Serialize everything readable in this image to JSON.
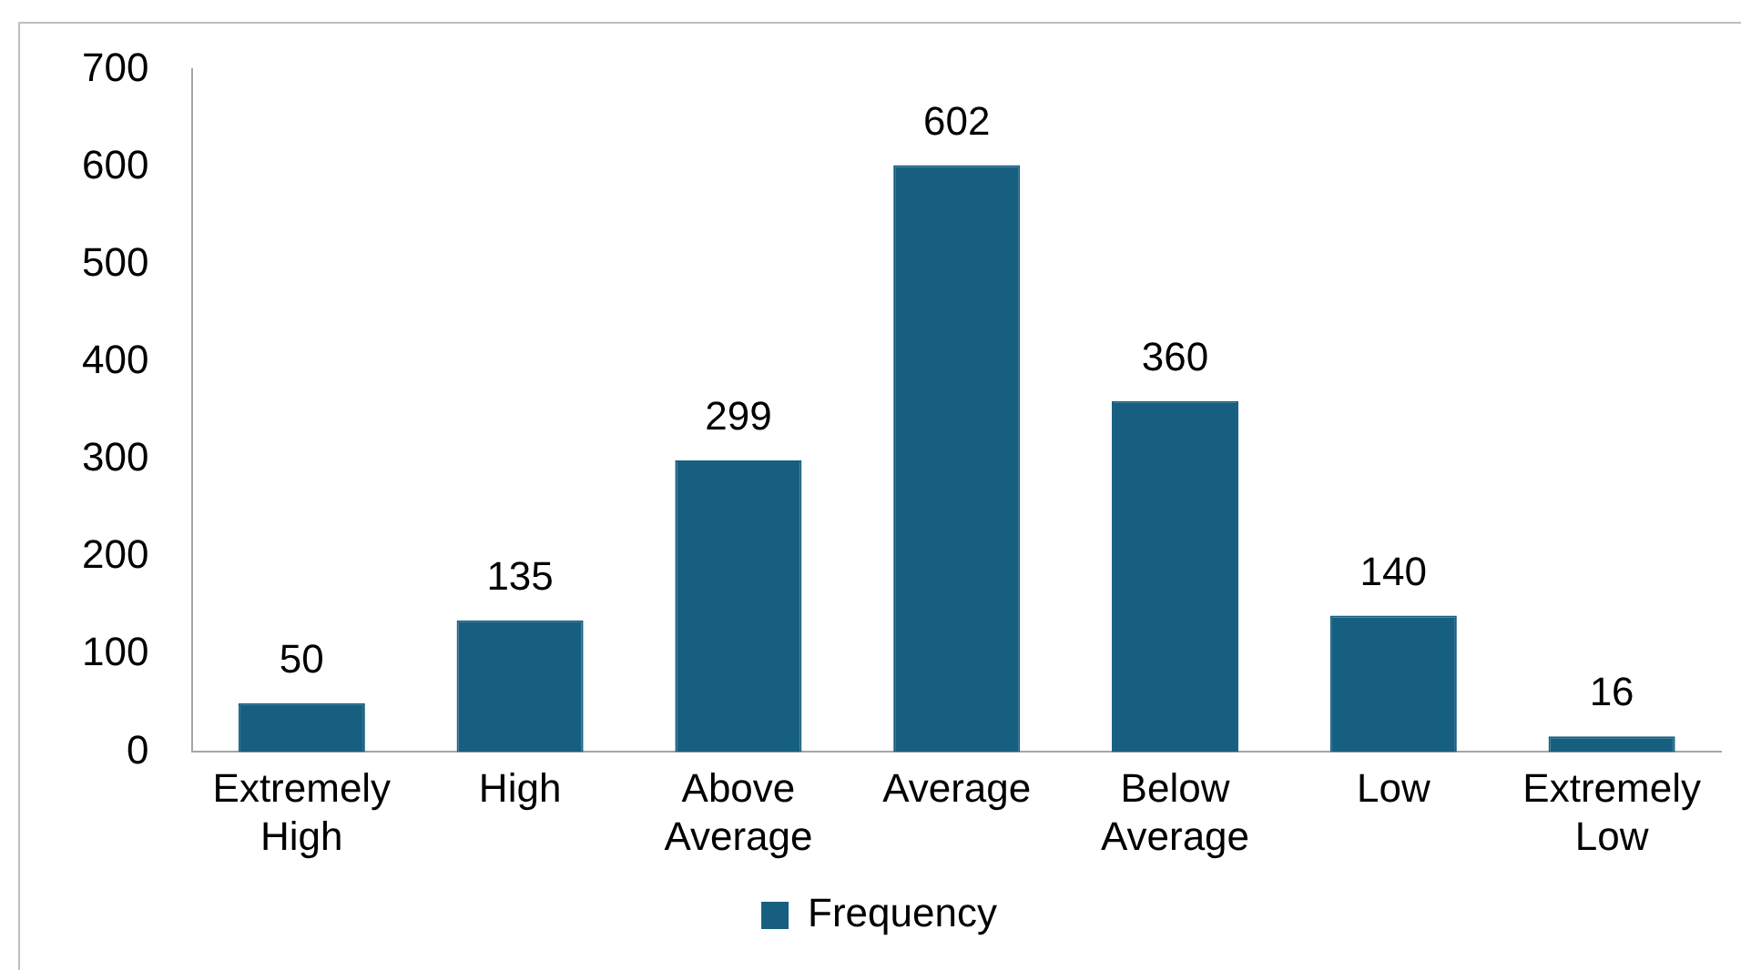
{
  "chart_data": {
    "type": "bar",
    "categories": [
      "Extremely High",
      "High",
      "Above Average",
      "Average",
      "Below Average",
      "Low",
      "Extremely Low"
    ],
    "series": [
      {
        "name": "Frequency",
        "color": "#175f80",
        "values": [
          50,
          135,
          299,
          602,
          360,
          140,
          16
        ]
      }
    ],
    "ylim": [
      0,
      700
    ],
    "yticks": [
      0,
      100,
      200,
      300,
      400,
      500,
      600,
      700
    ],
    "grid": false,
    "legend": "bottom",
    "data_labels": true
  }
}
